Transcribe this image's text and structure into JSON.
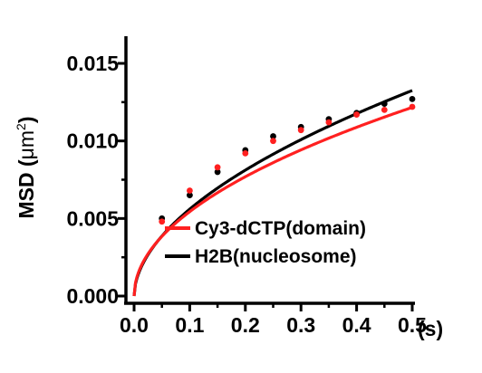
{
  "chart_data": {
    "type": "line",
    "title": "",
    "xlabel": "",
    "x_unit": "(s)",
    "ylabel": "MSD (μm²)",
    "ylabel_main": "MSD (",
    "ylabel_unit": "μm",
    "ylabel_exp": "2",
    "ylabel_close": ")",
    "xlim": [
      0.0,
      0.5
    ],
    "ylim": [
      0.0,
      0.015
    ],
    "x_ticks": [
      0.0,
      0.1,
      0.2,
      0.3,
      0.4,
      0.5
    ],
    "x_tick_labels": [
      "0.0",
      "0.1",
      "0.2",
      "0.3",
      "0.4",
      "0.5"
    ],
    "y_ticks": [
      0.0,
      0.005,
      0.01,
      0.015
    ],
    "y_tick_labels": [
      "0.000",
      "0.005",
      "0.010",
      "0.015"
    ],
    "grid": false,
    "legend_position": "bottom-right",
    "series": [
      {
        "name": "Cy3-dCTP(domain)",
        "color": "#ff2020",
        "points": {
          "x": [
            0.05,
            0.1,
            0.15,
            0.2,
            0.25,
            0.3,
            0.35,
            0.4,
            0.45,
            0.5
          ],
          "y": [
            0.0048,
            0.0068,
            0.0083,
            0.0092,
            0.01,
            0.0107,
            0.0112,
            0.0117,
            0.012,
            0.0122
          ]
        },
        "fit": {
          "model": "power",
          "coefficient": 0.0172,
          "exponent": 0.5
        }
      },
      {
        "name": "H2B(nucleosome)",
        "color": "#000000",
        "points": {
          "x": [
            0.05,
            0.1,
            0.15,
            0.2,
            0.25,
            0.3,
            0.35,
            0.4,
            0.45,
            0.5
          ],
          "y": [
            0.005,
            0.0065,
            0.008,
            0.0094,
            0.0103,
            0.0109,
            0.0114,
            0.0118,
            0.0124,
            0.0127
          ]
        },
        "fit": {
          "model": "power",
          "coefficient": 0.0192,
          "exponent": 0.535
        }
      }
    ]
  }
}
